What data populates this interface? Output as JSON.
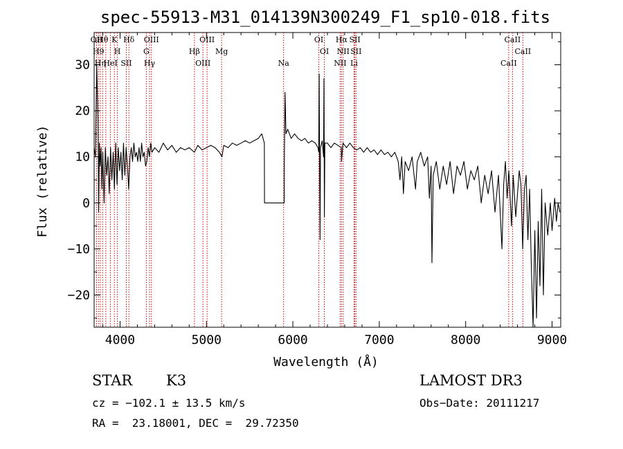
{
  "chart_data": {
    "type": "line",
    "title": "spec-55913-M31_014139N300249_F1_sp10-018.fits",
    "xlabel": "Wavelength (Å)",
    "ylabel": "Flux (relative)",
    "xlim": [
      3700,
      9100
    ],
    "ylim": [
      -27,
      37
    ],
    "xticks": [
      4000,
      5000,
      6000,
      7000,
      8000,
      9000
    ],
    "xtick_labels": [
      "4000",
      "5000",
      "6000",
      "7000",
      "8000",
      "9000"
    ],
    "yticks": [
      -20,
      -10,
      0,
      10,
      20,
      30
    ],
    "ytick_labels": [
      "−20",
      "−10",
      "0",
      "10",
      "20",
      "30"
    ],
    "grid": false,
    "line_color": "#000000",
    "marker_color": "#cc0000",
    "series": [
      {
        "values": [
          [
            3700,
            12
          ],
          [
            3715,
            10
          ],
          [
            3730,
            30
          ],
          [
            3745,
            18
          ],
          [
            3752,
            -2
          ],
          [
            3760,
            13
          ],
          [
            3770,
            8
          ],
          [
            3780,
            12
          ],
          [
            3790,
            3
          ],
          [
            3800,
            11
          ],
          [
            3815,
            0
          ],
          [
            3830,
            12
          ],
          [
            3845,
            6
          ],
          [
            3860,
            10
          ],
          [
            3875,
            2
          ],
          [
            3890,
            12
          ],
          [
            3905,
            5
          ],
          [
            3920,
            11
          ],
          [
            3935,
            3
          ],
          [
            3950,
            13
          ],
          [
            3965,
            4
          ],
          [
            3980,
            12
          ],
          [
            3995,
            7
          ],
          [
            4010,
            11
          ],
          [
            4025,
            5
          ],
          [
            4040,
            13
          ],
          [
            4055,
            6
          ],
          [
            4070,
            12
          ],
          [
            4085,
            8
          ],
          [
            4100,
            3
          ],
          [
            4115,
            10
          ],
          [
            4130,
            12
          ],
          [
            4145,
            9
          ],
          [
            4160,
            13
          ],
          [
            4175,
            10
          ],
          [
            4190,
            11
          ],
          [
            4205,
            9
          ],
          [
            4220,
            12
          ],
          [
            4235,
            9
          ],
          [
            4250,
            13
          ],
          [
            4265,
            10
          ],
          [
            4280,
            11
          ],
          [
            4295,
            8
          ],
          [
            4310,
            9
          ],
          [
            4325,
            12
          ],
          [
            4340,
            10
          ],
          [
            4355,
            13
          ],
          [
            4370,
            11
          ],
          [
            4400,
            12
          ],
          [
            4450,
            11
          ],
          [
            4500,
            13
          ],
          [
            4550,
            11.5
          ],
          [
            4600,
            12.5
          ],
          [
            4650,
            11
          ],
          [
            4700,
            12
          ],
          [
            4750,
            11.5
          ],
          [
            4800,
            12
          ],
          [
            4860,
            11
          ],
          [
            4900,
            12.5
          ],
          [
            4950,
            11.5
          ],
          [
            5000,
            12
          ],
          [
            5050,
            12.5
          ],
          [
            5100,
            12
          ],
          [
            5150,
            11
          ],
          [
            5180,
            10
          ],
          [
            5200,
            12.5
          ],
          [
            5250,
            12
          ],
          [
            5300,
            13
          ],
          [
            5350,
            12.5
          ],
          [
            5400,
            13
          ],
          [
            5450,
            13.5
          ],
          [
            5500,
            13
          ],
          [
            5550,
            13.5
          ],
          [
            5600,
            14
          ],
          [
            5640,
            15
          ],
          [
            5670,
            13
          ],
          [
            5672,
            0
          ],
          [
            5900,
            0
          ],
          [
            5902,
            10
          ],
          [
            5910,
            24
          ],
          [
            5920,
            15
          ],
          [
            5940,
            16
          ],
          [
            5980,
            14
          ],
          [
            6020,
            15
          ],
          [
            6060,
            14
          ],
          [
            6100,
            13.5
          ],
          [
            6140,
            14
          ],
          [
            6180,
            13
          ],
          [
            6220,
            13.5
          ],
          [
            6260,
            13
          ],
          [
            6290,
            12
          ],
          [
            6300,
            11
          ],
          [
            6305,
            28
          ],
          [
            6310,
            5
          ],
          [
            6315,
            -8
          ],
          [
            6320,
            12
          ],
          [
            6340,
            13.5
          ],
          [
            6355,
            10
          ],
          [
            6360,
            27
          ],
          [
            6365,
            -3
          ],
          [
            6370,
            13
          ],
          [
            6400,
            13
          ],
          [
            6440,
            12
          ],
          [
            6480,
            13
          ],
          [
            6520,
            12.5
          ],
          [
            6560,
            12
          ],
          [
            6563,
            9
          ],
          [
            6580,
            13
          ],
          [
            6620,
            12
          ],
          [
            6660,
            13
          ],
          [
            6700,
            12
          ],
          [
            6740,
            11.5
          ],
          [
            6780,
            12
          ],
          [
            6820,
            11
          ],
          [
            6860,
            12
          ],
          [
            6900,
            11
          ],
          [
            6940,
            11.5
          ],
          [
            6980,
            10.5
          ],
          [
            7020,
            11.5
          ],
          [
            7060,
            10.5
          ],
          [
            7100,
            11
          ],
          [
            7140,
            10
          ],
          [
            7180,
            11
          ],
          [
            7220,
            9
          ],
          [
            7240,
            5
          ],
          [
            7260,
            10
          ],
          [
            7280,
            2
          ],
          [
            7300,
            9
          ],
          [
            7340,
            7
          ],
          [
            7380,
            10
          ],
          [
            7420,
            3
          ],
          [
            7440,
            9
          ],
          [
            7480,
            11
          ],
          [
            7520,
            8
          ],
          [
            7560,
            10
          ],
          [
            7580,
            1
          ],
          [
            7600,
            8
          ],
          [
            7610,
            -13
          ],
          [
            7625,
            6
          ],
          [
            7660,
            9
          ],
          [
            7700,
            3
          ],
          [
            7740,
            8
          ],
          [
            7780,
            4
          ],
          [
            7820,
            9
          ],
          [
            7860,
            2
          ],
          [
            7900,
            8
          ],
          [
            7940,
            6
          ],
          [
            7980,
            9
          ],
          [
            8020,
            3
          ],
          [
            8060,
            7
          ],
          [
            8100,
            5
          ],
          [
            8140,
            8
          ],
          [
            8180,
            0
          ],
          [
            8220,
            6
          ],
          [
            8260,
            2
          ],
          [
            8300,
            7
          ],
          [
            8340,
            -2
          ],
          [
            8380,
            6
          ],
          [
            8420,
            -10
          ],
          [
            8440,
            4
          ],
          [
            8460,
            9
          ],
          [
            8480,
            1
          ],
          [
            8500,
            7
          ],
          [
            8530,
            -5
          ],
          [
            8550,
            6
          ],
          [
            8580,
            -3
          ],
          [
            8620,
            7
          ],
          [
            8640,
            4
          ],
          [
            8660,
            -10
          ],
          [
            8680,
            3
          ],
          [
            8700,
            6
          ],
          [
            8720,
            -8
          ],
          [
            8740,
            3
          ],
          [
            8760,
            -14
          ],
          [
            8780,
            -27
          ],
          [
            8800,
            -6
          ],
          [
            8820,
            -25
          ],
          [
            8840,
            -4
          ],
          [
            8860,
            -18
          ],
          [
            8880,
            3
          ],
          [
            8900,
            -20
          ],
          [
            8920,
            0
          ],
          [
            8950,
            -7
          ],
          [
            8980,
            0
          ],
          [
            9000,
            -6
          ],
          [
            9030,
            1
          ],
          [
            9050,
            -4
          ],
          [
            9070,
            0
          ],
          [
            9090,
            -2
          ]
        ]
      }
    ],
    "line_markers": [
      {
        "x": 3728,
        "labels": [
          "OII"
        ]
      },
      {
        "x": 3750,
        "labels": [
          "H9"
        ]
      },
      {
        "x": 3771,
        "labels": [
          "Hη"
        ]
      },
      {
        "x": 3798,
        "labels": [
          "Hθ"
        ]
      },
      {
        "x": 3835,
        "labels": [
          ""
        ]
      },
      {
        "x": 3889,
        "labels": [
          "HeI"
        ]
      },
      {
        "x": 3934,
        "labels": [
          "K"
        ]
      },
      {
        "x": 3969,
        "labels": [
          "H"
        ]
      },
      {
        "x": 4072,
        "labels": [
          "SII"
        ]
      },
      {
        "x": 4102,
        "labels": [
          "Hδ"
        ]
      },
      {
        "x": 4304,
        "labels": [
          "G"
        ]
      },
      {
        "x": 4341,
        "labels": [
          "Hγ"
        ]
      },
      {
        "x": 4363,
        "labels": [
          "OIII"
        ]
      },
      {
        "x": 4861,
        "labels": [
          "Hβ"
        ]
      },
      {
        "x": 4959,
        "labels": [
          "OIII"
        ]
      },
      {
        "x": 5007,
        "labels": [
          "OIII"
        ]
      },
      {
        "x": 5175,
        "labels": [
          "Mg"
        ]
      },
      {
        "x": 5893,
        "labels": [
          "Na"
        ]
      },
      {
        "x": 6300,
        "labels": [
          "OI"
        ]
      },
      {
        "x": 6364,
        "labels": [
          "OI"
        ]
      },
      {
        "x": 6548,
        "labels": [
          "NII"
        ]
      },
      {
        "x": 6563,
        "labels": [
          "Hα"
        ]
      },
      {
        "x": 6583,
        "labels": [
          "NII"
        ]
      },
      {
        "x": 6708,
        "labels": [
          "Li"
        ]
      },
      {
        "x": 6717,
        "labels": [
          "SII"
        ]
      },
      {
        "x": 6731,
        "labels": [
          "SII"
        ]
      },
      {
        "x": 8498,
        "labels": [
          "CaII"
        ]
      },
      {
        "x": 8542,
        "labels": [
          "CaII"
        ]
      },
      {
        "x": 8662,
        "labels": [
          "CaII"
        ]
      }
    ]
  },
  "info": {
    "class_label": "STAR",
    "subclass_label": "K3",
    "survey": "LAMOST DR3",
    "cz": "cz = −102.1 ± 13.5 km/s",
    "obs_date": "Obs−Date: 20111217",
    "radec": "RA =  23.18001, DEC =  29.72350"
  }
}
